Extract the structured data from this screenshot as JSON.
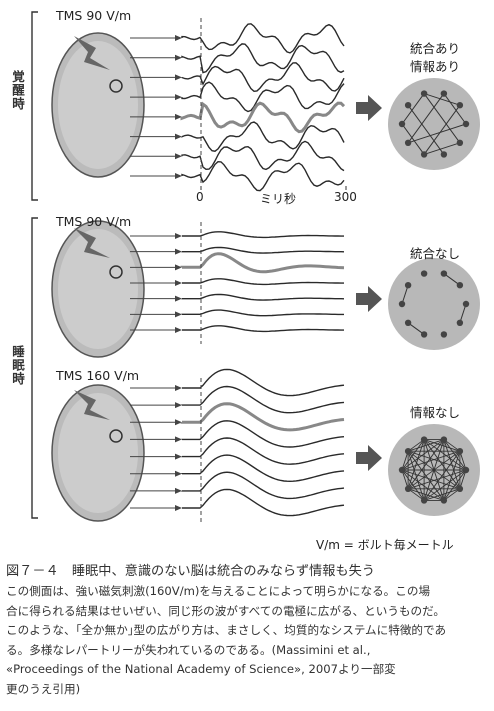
{
  "side_labels": {
    "awake": "覚醒時",
    "sleep": "睡眠時"
  },
  "panels": [
    {
      "tms": "TMS 90 V/m"
    },
    {
      "tms": "TMS 90 V/m"
    },
    {
      "tms": "TMS 160 V/m"
    }
  ],
  "axis": {
    "zero": "0",
    "unit": "ミリ秒",
    "end": "300"
  },
  "results": [
    {
      "line1": "統合あり",
      "line2": "情報あり"
    },
    {
      "line1": "統合なし"
    },
    {
      "line1": "情報なし"
    }
  ],
  "unit_note": "V/m = ボルト毎メートル",
  "caption": {
    "title": "図７－４　睡眠中、意識のない脳は統合のみならず情報も失う",
    "lines": [
      "この側面は、強い磁気刺激(160V/m)を与えることによって明らかになる。この場",
      "合に得られる結果はせいぜい、同じ形の波がすべての電極に広がる、というものだ。",
      "このような、｢全か無か｣型の広がり方は、まさしく、均質的なシステムに特徴的であ",
      "る。多様なレパートリーが失われているのである。(Massimini et al.,",
      "«Proceedings of the National Academy of Science», 2007より一部変",
      "更のうえ引用)"
    ]
  },
  "colors": {
    "trace": "#2a2a2a",
    "highlight": "#888888",
    "circle": "#b8b8b8",
    "node": "#444444"
  }
}
